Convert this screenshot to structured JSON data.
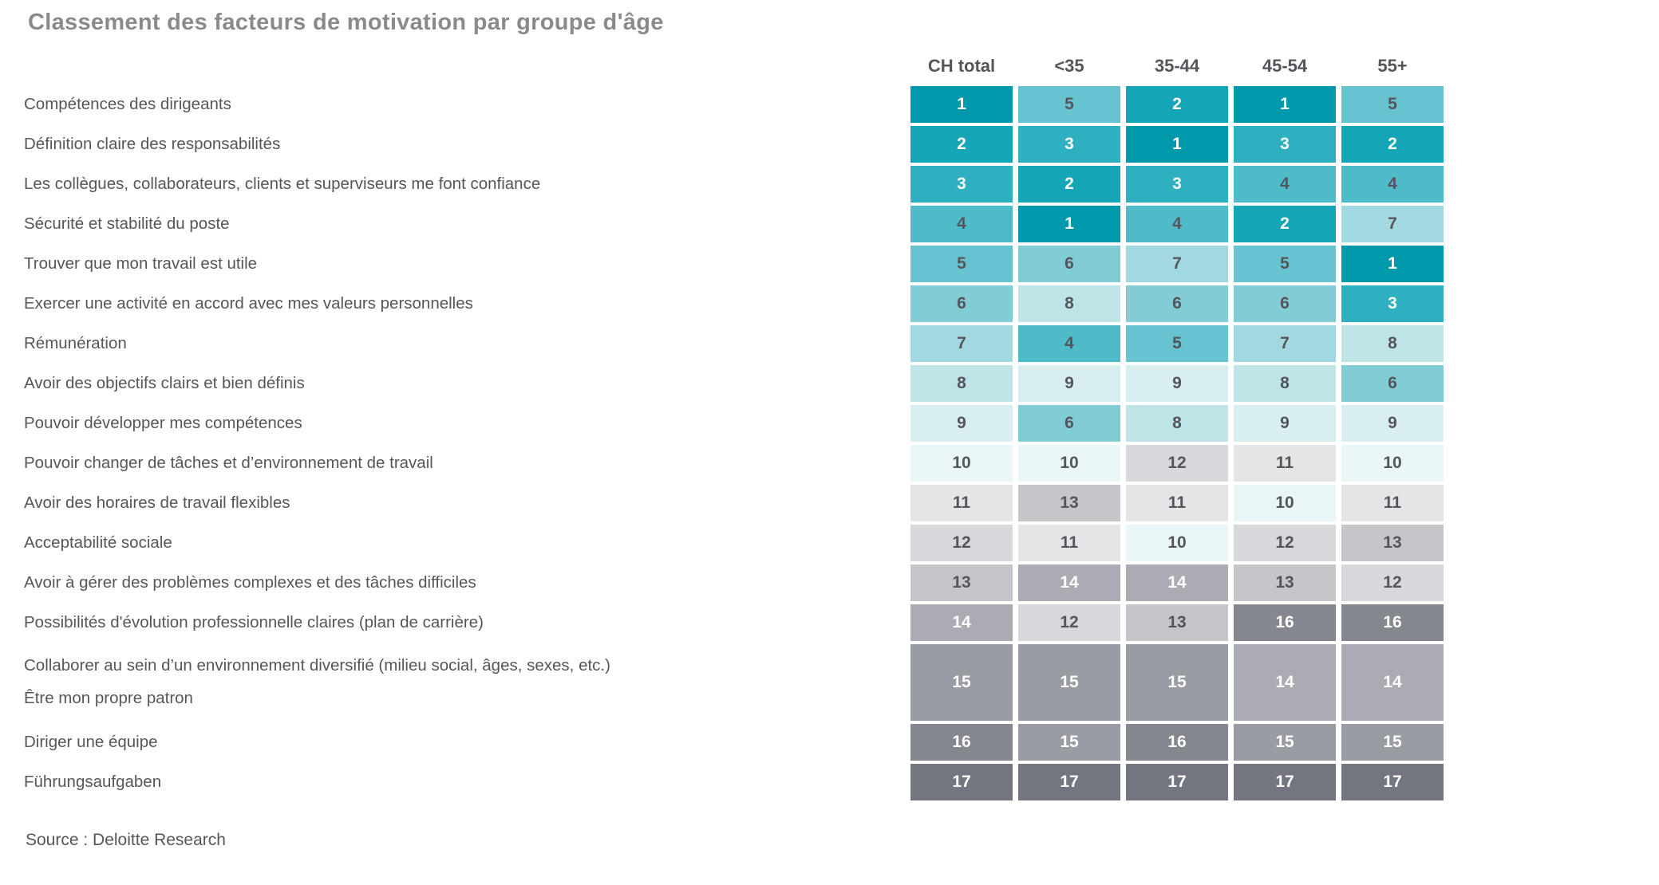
{
  "title": "Classement des facteurs de motivation par groupe d'âge",
  "source": "Source : Deloitte Research",
  "chart_data": {
    "type": "heatmap",
    "title": "Classement des facteurs de motivation par groupe d'âge",
    "columns": [
      "CH total",
      "<35",
      "35-44",
      "45-54",
      "55+"
    ],
    "value_meaning": "rank of motivation factor (1 = highest rank, 17 = lowest)",
    "rows": [
      {
        "label": "Compétences des dirigeants",
        "values": [
          1,
          5,
          2,
          1,
          5
        ]
      },
      {
        "label": "Définition claire des responsabilités",
        "values": [
          2,
          3,
          1,
          3,
          2
        ]
      },
      {
        "label": "Les collègues, collaborateurs, clients et superviseurs me font confiance",
        "values": [
          3,
          2,
          3,
          4,
          4
        ]
      },
      {
        "label": "Sécurité et stabilité du poste",
        "values": [
          4,
          1,
          4,
          2,
          7
        ]
      },
      {
        "label": "Trouver que mon travail est utile",
        "values": [
          5,
          6,
          7,
          5,
          1
        ]
      },
      {
        "label": "Exercer une activité en accord avec mes valeurs personnelles",
        "values": [
          6,
          8,
          6,
          6,
          3
        ]
      },
      {
        "label": "Rémunération",
        "values": [
          7,
          4,
          5,
          7,
          8
        ]
      },
      {
        "label": "Avoir des objectifs clairs et bien définis",
        "values": [
          8,
          9,
          9,
          8,
          6
        ]
      },
      {
        "label": "Pouvoir développer mes compétences",
        "values": [
          9,
          6,
          8,
          9,
          9
        ]
      },
      {
        "label": "Pouvoir changer de tâches et d’environnement de travail",
        "values": [
          10,
          10,
          12,
          11,
          10
        ]
      },
      {
        "label": "Avoir des horaires de travail flexibles",
        "values": [
          11,
          13,
          11,
          10,
          11
        ]
      },
      {
        "label": "Acceptabilité sociale",
        "values": [
          12,
          11,
          10,
          12,
          13
        ]
      },
      {
        "label": "Avoir à gérer des problèmes complexes et des tâches difficiles",
        "values": [
          13,
          14,
          14,
          13,
          12
        ]
      },
      {
        "label": "Possibilités d'évolution professionnelle claires (plan de carrière)",
        "values": [
          14,
          12,
          13,
          16,
          16
        ]
      },
      {
        "label_lines": [
          "Collaborer au sein d’un environnement diversifié (milieu social, âges, sexes, etc.)",
          "Être mon propre patron"
        ],
        "values": [
          15,
          15,
          15,
          14,
          14
        ],
        "tall": true
      },
      {
        "label": "Diriger une équipe",
        "values": [
          16,
          15,
          16,
          15,
          15
        ]
      },
      {
        "label": "Führungsaufgaben",
        "values": [
          17,
          17,
          17,
          17,
          17
        ]
      }
    ],
    "legend_position": "none",
    "grid": false,
    "source": "Source : Deloitte Research"
  },
  "colors": {
    "title_text": "#8A8A8D",
    "body_text": "#54565B",
    "header_text": "#53565A",
    "white_text": "#FFFFFF",
    "rank_bg": {
      "1": "#0099AC",
      "2": "#14A5B7",
      "3": "#2EB0C0",
      "4": "#4FBAC8",
      "5": "#67C3CF",
      "6": "#82CCD6",
      "7": "#A2D8DF",
      "8": "#BFE4E8",
      "9": "#D8EEF0",
      "10": "#EAF5F7",
      "11": "#E4E5E7",
      "12": "#D7D8DB",
      "13": "#C5C5CA",
      "14": "#ABACB3",
      "15": "#9A9CA3",
      "16": "#85878F",
      "17": "#74767F"
    },
    "white_text_ranks": [
      1,
      2,
      3,
      14,
      15,
      16,
      17
    ]
  }
}
